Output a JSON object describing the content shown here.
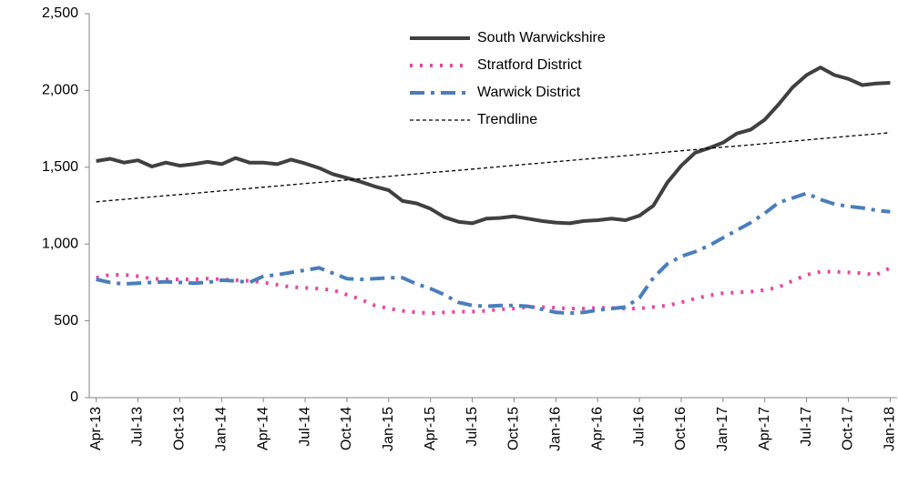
{
  "chart_data": {
    "type": "line",
    "categories": [
      "Apr-13",
      null,
      null,
      "Jul-13",
      null,
      null,
      "Oct-13",
      null,
      null,
      "Jan-14",
      null,
      null,
      "Apr-14",
      null,
      null,
      "Jul-14",
      null,
      null,
      "Oct-14",
      null,
      null,
      "Jan-15",
      null,
      null,
      "Apr-15",
      null,
      null,
      "Jul-15",
      null,
      null,
      "Oct-15",
      null,
      null,
      "Jan-16",
      null,
      null,
      "Apr-16",
      null,
      null,
      "Jul-16",
      null,
      null,
      "Oct-16",
      null,
      null,
      "Jan-17",
      null,
      null,
      "Apr-17",
      null,
      null,
      "Jul-17",
      null,
      null,
      "Oct-17",
      null,
      null,
      "Jan-18"
    ],
    "series": [
      {
        "name": "South Warwickshire",
        "color": "#404040",
        "style": "solid",
        "values": [
          1540,
          1555,
          1530,
          1545,
          1505,
          1530,
          1510,
          1520,
          1535,
          1520,
          1560,
          1530,
          1530,
          1520,
          1550,
          1525,
          1495,
          1455,
          1430,
          1405,
          1375,
          1350,
          1280,
          1265,
          1230,
          1175,
          1145,
          1135,
          1165,
          1170,
          1180,
          1165,
          1150,
          1140,
          1135,
          1150,
          1155,
          1165,
          1155,
          1185,
          1250,
          1400,
          1510,
          1595,
          1625,
          1660,
          1720,
          1745,
          1810,
          1910,
          2020,
          2100,
          2150,
          2100,
          2075,
          2035,
          2045,
          2050
        ]
      },
      {
        "name": "Stratford District",
        "color": "#e8489a",
        "style": "dotted",
        "values": [
          780,
          800,
          800,
          790,
          775,
          770,
          770,
          770,
          775,
          770,
          765,
          760,
          750,
          735,
          720,
          715,
          710,
          700,
          670,
          640,
          600,
          580,
          565,
          555,
          550,
          555,
          560,
          560,
          565,
          575,
          580,
          590,
          590,
          585,
          580,
          580,
          585,
          585,
          580,
          580,
          590,
          600,
          620,
          645,
          665,
          680,
          685,
          690,
          700,
          720,
          760,
          800,
          820,
          820,
          815,
          810,
          800,
          845
        ]
      },
      {
        "name": "Warwick District",
        "color": "#4a7ebb",
        "style": "dashdot",
        "values": [
          770,
          750,
          740,
          745,
          750,
          755,
          750,
          745,
          750,
          765,
          760,
          750,
          790,
          800,
          815,
          830,
          845,
          810,
          775,
          770,
          775,
          780,
          780,
          740,
          710,
          670,
          620,
          600,
          595,
          600,
          600,
          595,
          575,
          555,
          550,
          555,
          570,
          580,
          590,
          650,
          780,
          870,
          920,
          950,
          990,
          1040,
          1090,
          1140,
          1200,
          1270,
          1300,
          1330,
          1290,
          1260,
          1245,
          1235,
          1220,
          1210
        ]
      },
      {
        "name": "Trendline",
        "color": "#000000",
        "style": "dashed",
        "values": [
          1275,
          1283,
          1291,
          1299,
          1307,
          1315,
          1322,
          1330,
          1338,
          1346,
          1354,
          1362,
          1370,
          1378,
          1386,
          1394,
          1401,
          1409,
          1417,
          1425,
          1433,
          1441,
          1449,
          1457,
          1465,
          1473,
          1480,
          1488,
          1496,
          1504,
          1512,
          1520,
          1528,
          1536,
          1544,
          1552,
          1559,
          1567,
          1575,
          1583,
          1591,
          1599,
          1607,
          1615,
          1623,
          1631,
          1638,
          1646,
          1654,
          1662,
          1670,
          1678,
          1686,
          1694,
          1702,
          1710,
          1717,
          1725
        ]
      }
    ],
    "ylim": [
      0,
      2500
    ],
    "yticks": [
      0,
      500,
      {
        "value": 1000,
        "label": "1,000"
      },
      {
        "value": 1500,
        "label": "1,500"
      },
      {
        "value": 2000,
        "label": "2,000"
      },
      {
        "value": 2500,
        "label": "2,500"
      }
    ],
    "grid": false,
    "legend": "upper center"
  }
}
